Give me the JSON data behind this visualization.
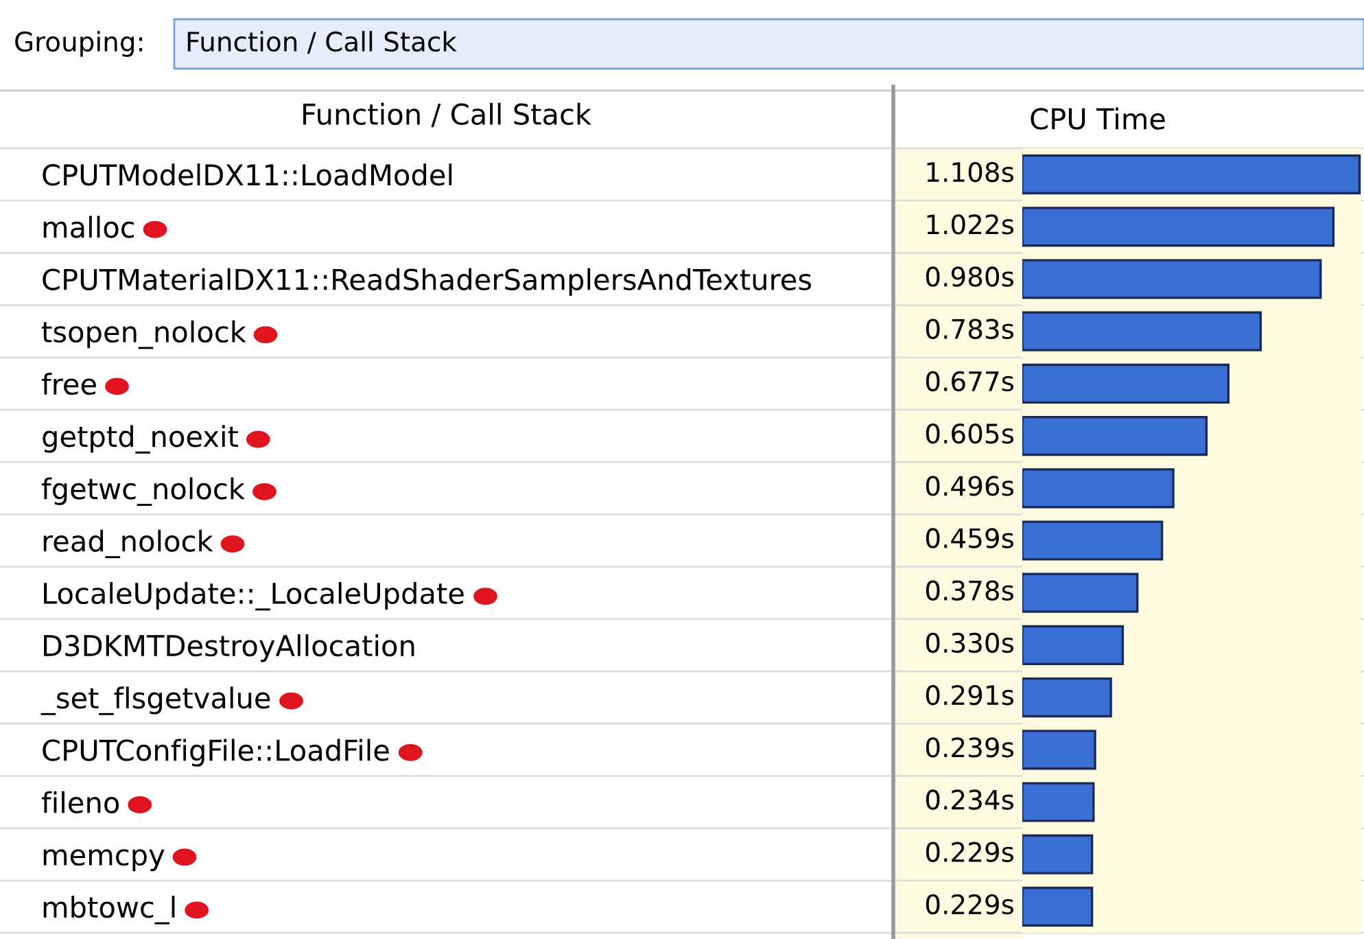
{
  "chart_data": {
    "type": "bar",
    "orientation": "horizontal",
    "xlabel": "CPU Time",
    "ylabel": "Function / Call Stack",
    "annotations": [
      "Grouping:",
      "Function / Call Stack"
    ],
    "categories": [
      "CPUTModelDX11::LoadModel",
      "malloc",
      "CPUTMaterialDX11::ReadShaderSamplersAndTextures",
      "tsopen_nolock",
      "free",
      "getptd_noexit",
      "fgetwc_nolock",
      "read_nolock",
      "LocaleUpdate::_LocaleUpdate",
      "D3DKMTDestroyAllocation",
      "_set_flsgetvalue",
      "CPUTConfigFile::LoadFile",
      "fileno",
      "memcpy",
      "mbtowc_l"
    ],
    "values": [
      1.108,
      1.022,
      0.98,
      0.783,
      0.677,
      0.605,
      0.496,
      0.459,
      0.378,
      0.33,
      0.291,
      0.239,
      0.234,
      0.229,
      0.229
    ],
    "value_labels": [
      "1.108s",
      "1.022s",
      "0.980s",
      "0.783s",
      "0.677s",
      "0.605s",
      "0.496s",
      "0.459s",
      "0.378s",
      "0.330s",
      "0.291s",
      "0.239s",
      "0.234s",
      "0.229s",
      "0.229s"
    ],
    "color": "#3a6fd6",
    "grid": false
  }
}
